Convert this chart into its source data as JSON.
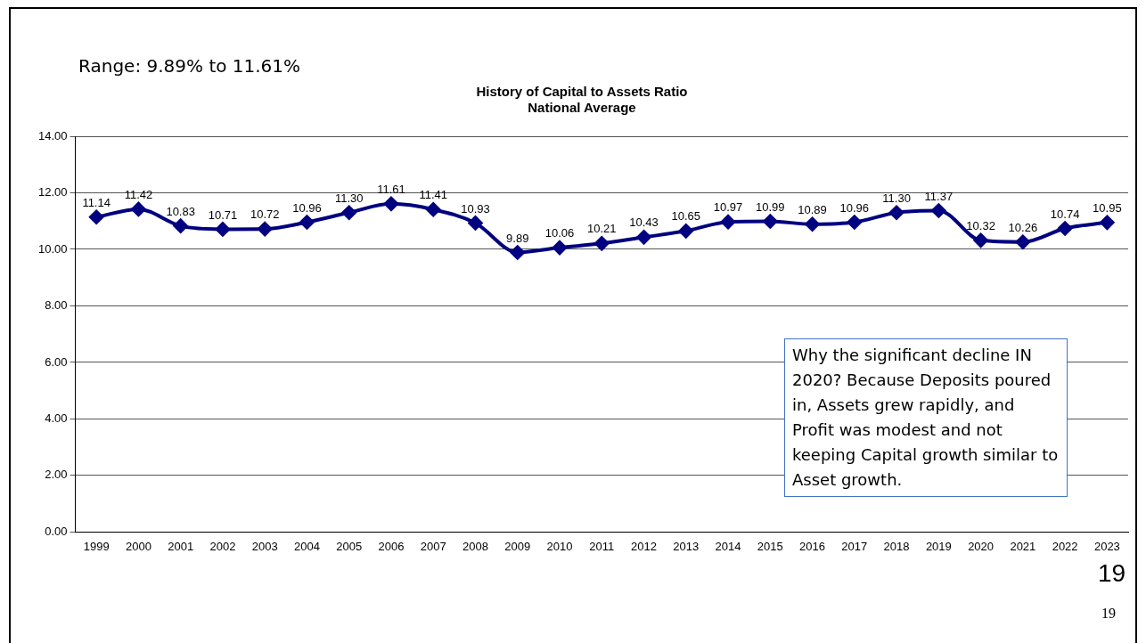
{
  "chart_data": {
    "type": "line",
    "title": "History of Capital to Assets Ratio\nNational Average",
    "categories": [
      "1999",
      "2000",
      "2001",
      "2002",
      "2003",
      "2004",
      "2005",
      "2006",
      "2007",
      "2008",
      "2009",
      "2010",
      "2011",
      "2012",
      "2013",
      "2014",
      "2015",
      "2016",
      "2017",
      "2018",
      "2019",
      "2020",
      "2021",
      "2022",
      "2023"
    ],
    "series": [
      {
        "color": "#000080",
        "values": [
          11.14,
          11.42,
          10.83,
          10.71,
          10.72,
          10.96,
          11.3,
          11.61,
          11.41,
          10.93,
          9.89,
          10.06,
          10.21,
          10.43,
          10.65,
          10.97,
          10.99,
          10.89,
          10.96,
          11.3,
          11.37,
          10.32,
          10.26,
          10.74,
          10.95
        ]
      }
    ],
    "ylim": [
      0,
      14
    ],
    "yticks": [
      {
        "value": 0,
        "label": "0.00"
      },
      {
        "value": 2,
        "label": "2.00"
      },
      {
        "value": 4,
        "label": "4.00"
      },
      {
        "value": 6,
        "label": "6.00"
      },
      {
        "value": 8,
        "label": "8.00"
      },
      {
        "value": 10,
        "label": "10.00"
      },
      {
        "value": 12,
        "label": "12.00"
      },
      {
        "value": 14,
        "label": "14.00"
      }
    ],
    "grid": "y",
    "legend": false,
    "marker": "diamond",
    "line_style": "solid",
    "value_labels": [
      "11.14",
      "11.42",
      "10.83",
      "10.71",
      "10.72",
      "10.96",
      "11.30",
      "11.61",
      "11.41",
      "10.93",
      "9.89",
      "10.06",
      "10.21",
      "10.43",
      "10.65",
      "10.97",
      "10.99",
      "10.89",
      "10.96",
      "11.30",
      "11.37",
      "10.32",
      "10.26",
      "10.74",
      "10.95"
    ],
    "annotations": [
      "Range: 9.89% to 11.61%",
      "Why the significant decline IN 2020? Because Deposits poured in, Assets grew rapidly, and Profit was modest and not keeping Capital growth similar to Asset growth.",
      "19",
      "19"
    ]
  }
}
